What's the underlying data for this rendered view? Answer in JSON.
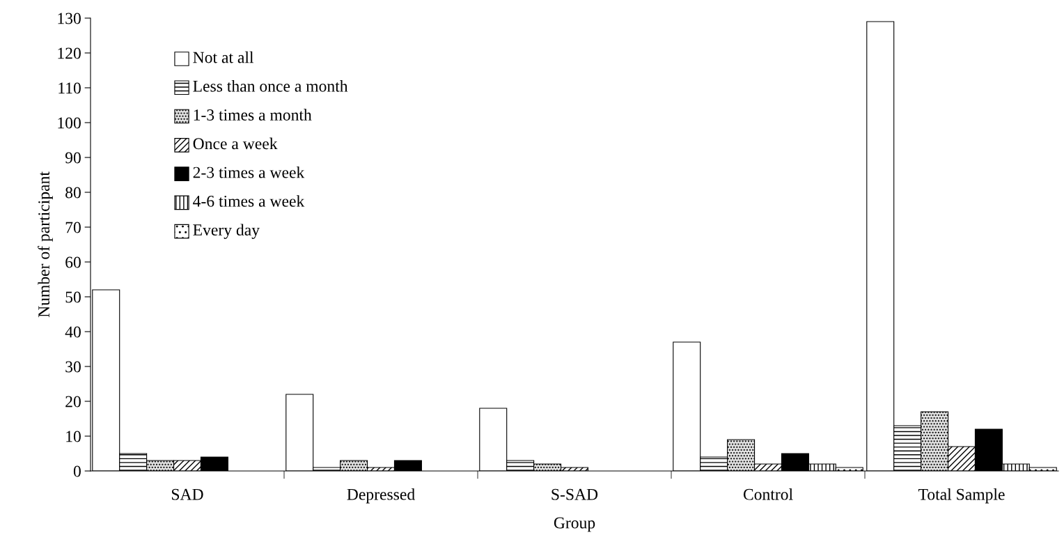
{
  "chart_data": {
    "type": "bar",
    "xlabel": "Group",
    "ylabel": "Number of participant",
    "categories": [
      "SAD",
      "Depressed",
      "S-SAD",
      "Control",
      "Total Sample"
    ],
    "series": [
      {
        "name": "Not at all",
        "color": "#ffffff",
        "values": [
          52,
          22,
          18,
          37,
          129
        ]
      },
      {
        "name": "Less than once a month",
        "color": "#ffffff",
        "values": [
          5,
          1,
          3,
          4,
          13
        ]
      },
      {
        "name": "1-3 times a month",
        "color": "#e0e0e0",
        "values": [
          3,
          3,
          2,
          9,
          17
        ]
      },
      {
        "name": "Once a week",
        "color": "#ffffff",
        "values": [
          3,
          1,
          1,
          2,
          7
        ]
      },
      {
        "name": "2-3 times a week",
        "color": "#000000",
        "values": [
          4,
          3,
          0,
          5,
          12
        ]
      },
      {
        "name": "4-6 times a week",
        "color": "#ffffff",
        "values": [
          0,
          0,
          0,
          2,
          2
        ]
      },
      {
        "name": "Every day",
        "color": "#ffffff",
        "values": [
          0,
          0,
          0,
          1,
          1
        ]
      }
    ],
    "ylim": [
      0,
      130
    ],
    "yticks": [
      0,
      10,
      20,
      30,
      40,
      50,
      60,
      70,
      80,
      90,
      100,
      110,
      120,
      130
    ],
    "grid": false,
    "legend": "top left"
  }
}
